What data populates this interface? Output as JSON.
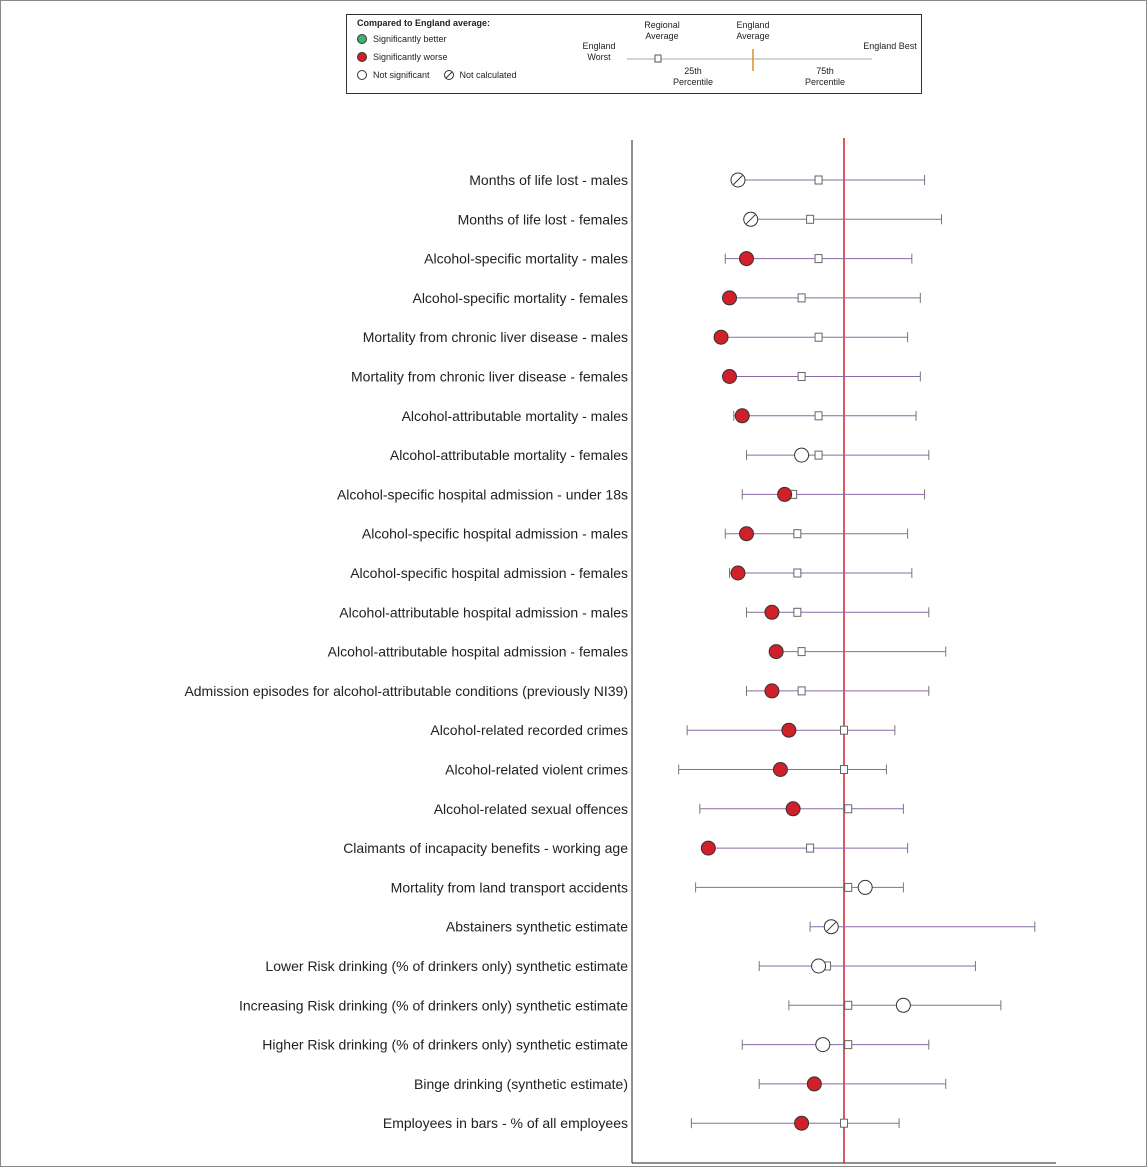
{
  "legend": {
    "title": "Compared to England average:",
    "items": [
      {
        "label": "Significantly better",
        "color": "#3cb371"
      },
      {
        "label": "Significantly worse",
        "color": "#d0202a"
      },
      {
        "label": "Not significant",
        "color": "#ffffff"
      },
      {
        "label": "Not calculated",
        "color": "#ffffff"
      }
    ],
    "scale": {
      "worst": "England Worst",
      "best": "England Best",
      "regional": "Regional Average",
      "england_avg": "England Average",
      "p25": "25th Percentile",
      "p75": "75th Percentile"
    }
  },
  "chart_data": {
    "type": "spine",
    "england_average_line": 0.5,
    "england_line_color": "#d0202a",
    "indicators": [
      {
        "label": "Months of life lost - males",
        "value": 0.25,
        "status": "not-calculated",
        "regional": 0.44,
        "min": 0.26,
        "max": 0.69
      },
      {
        "label": "Months of life lost - females",
        "value": 0.28,
        "status": "not-calculated",
        "regional": 0.42,
        "min": 0.27,
        "max": 0.73
      },
      {
        "label": "Alcohol-specific mortality - males",
        "value": 0.27,
        "status": "worse",
        "regional": 0.44,
        "min": 0.22,
        "max": 0.66
      },
      {
        "label": "Alcohol-specific mortality - females",
        "value": 0.23,
        "status": "worse",
        "regional": 0.4,
        "min": 0.23,
        "max": 0.68
      },
      {
        "label": "Mortality from chronic liver disease - males",
        "value": 0.21,
        "status": "worse",
        "regional": 0.44,
        "min": 0.21,
        "max": 0.65
      },
      {
        "label": "Mortality from chronic liver disease - females",
        "value": 0.23,
        "status": "worse",
        "regional": 0.4,
        "min": 0.23,
        "max": 0.68
      },
      {
        "label": "Alcohol-attributable mortality - males",
        "value": 0.26,
        "status": "worse",
        "regional": 0.44,
        "min": 0.24,
        "max": 0.67
      },
      {
        "label": "Alcohol-attributable mortality - females",
        "value": 0.4,
        "status": "not-significant",
        "regional": 0.44,
        "min": 0.27,
        "max": 0.7
      },
      {
        "label": "Alcohol-specific hospital admission - under 18s",
        "value": 0.36,
        "status": "worse",
        "regional": 0.38,
        "min": 0.26,
        "max": 0.69
      },
      {
        "label": "Alcohol-specific hospital admission - males",
        "value": 0.27,
        "status": "worse",
        "regional": 0.39,
        "min": 0.22,
        "max": 0.65
      },
      {
        "label": "Alcohol-specific hospital admission - females",
        "value": 0.25,
        "status": "worse",
        "regional": 0.39,
        "min": 0.23,
        "max": 0.66
      },
      {
        "label": "Alcohol-attributable hospital admission - males",
        "value": 0.33,
        "status": "worse",
        "regional": 0.39,
        "min": 0.27,
        "max": 0.7
      },
      {
        "label": "Alcohol-attributable hospital admission - females",
        "value": 0.34,
        "status": "worse",
        "regional": 0.4,
        "min": 0.33,
        "max": 0.74
      },
      {
        "label": "Admission episodes for alcohol-attributable conditions (previously NI39)",
        "value": 0.33,
        "status": "worse",
        "regional": 0.4,
        "min": 0.27,
        "max": 0.7
      },
      {
        "label": "Alcohol-related recorded crimes",
        "value": 0.37,
        "status": "worse",
        "regional": 0.5,
        "min": 0.13,
        "max": 0.62
      },
      {
        "label": "Alcohol-related violent crimes",
        "value": 0.35,
        "status": "worse",
        "regional": 0.5,
        "min": 0.11,
        "max": 0.6
      },
      {
        "label": "Alcohol-related sexual offences",
        "value": 0.38,
        "status": "worse",
        "regional": 0.51,
        "min": 0.16,
        "max": 0.64
      },
      {
        "label": "Claimants of incapacity benefits - working age",
        "value": 0.18,
        "status": "worse",
        "regional": 0.42,
        "min": 0.18,
        "max": 0.65
      },
      {
        "label": "Mortality from land transport accidents",
        "value": 0.55,
        "status": "not-significant",
        "regional": 0.51,
        "min": 0.15,
        "max": 0.64
      },
      {
        "label": "Abstainers synthetic estimate",
        "value": 0.47,
        "status": "not-calculated",
        "regional": 0.47,
        "min": 0.42,
        "max": 0.95
      },
      {
        "label": "Lower Risk drinking (% of drinkers only) synthetic estimate",
        "value": 0.44,
        "status": "not-significant",
        "regional": 0.46,
        "min": 0.3,
        "max": 0.81
      },
      {
        "label": "Increasing Risk drinking (% of drinkers only) synthetic estimate",
        "value": 0.64,
        "status": "not-significant",
        "regional": 0.51,
        "min": 0.37,
        "max": 0.87
      },
      {
        "label": "Higher Risk drinking (% of drinkers only) synthetic estimate",
        "value": 0.45,
        "status": "not-significant",
        "regional": 0.51,
        "min": 0.26,
        "max": 0.7
      },
      {
        "label": "Binge drinking (synthetic estimate)",
        "value": 0.43,
        "status": "worse-partial",
        "regional": 0.43,
        "min": 0.3,
        "max": 0.74
      },
      {
        "label": "Employees in bars - % of all employees",
        "value": 0.4,
        "status": "worse",
        "regional": 0.5,
        "min": 0.14,
        "max": 0.63
      }
    ]
  }
}
